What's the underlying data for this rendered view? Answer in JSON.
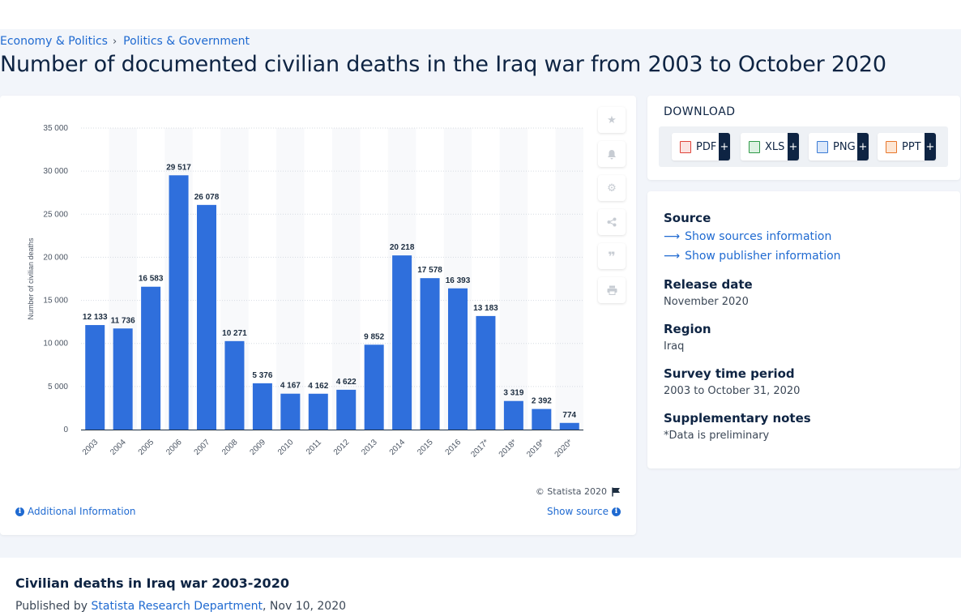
{
  "breadcrumb": {
    "item1": "Economy & Politics",
    "item2": "Politics & Government"
  },
  "title": "Number of documented civilian deaths in the Iraq war from 2003 to October 2020",
  "chart_data": {
    "type": "bar",
    "categories": [
      "2003",
      "2004",
      "2005",
      "2006",
      "2007",
      "2008",
      "2009",
      "2010",
      "2011",
      "2012",
      "2013",
      "2014",
      "2015",
      "2016",
      "2017*",
      "2018*",
      "2019*",
      "2020*"
    ],
    "values": [
      12133,
      11736,
      16583,
      29517,
      26078,
      10271,
      5376,
      4167,
      4162,
      4622,
      9852,
      20218,
      17578,
      16393,
      13183,
      3319,
      2392,
      774
    ],
    "value_labels": [
      "12 133",
      "11 736",
      "16 583",
      "29 517",
      "26 078",
      "10 271",
      "5 376",
      "4 167",
      "4 162",
      "4 622",
      "9 852",
      "20 218",
      "17 578",
      "16 393",
      "13 183",
      "3 319",
      "2 392",
      "774"
    ],
    "ylabel": "Number of civilian deaths",
    "ylim": [
      0,
      35000
    ],
    "yticks": [
      "0",
      "5 000",
      "10 000",
      "15 000",
      "20 000",
      "25 000",
      "30 000",
      "35 000"
    ],
    "bar_color": "#2f6fdc",
    "grid": true
  },
  "chart_footer": {
    "copyright": "© Statista 2020",
    "additional_info": "Additional Information",
    "show_source": "Show source"
  },
  "tools": [
    "star-icon",
    "bell-icon",
    "gear-icon",
    "share-icon",
    "quote-icon",
    "print-icon"
  ],
  "download": {
    "title": "DOWNLOAD",
    "buttons": [
      {
        "label": "PDF",
        "color": "#e0443a"
      },
      {
        "label": "XLS",
        "color": "#2e9a47"
      },
      {
        "label": "PNG",
        "color": "#3a7bd5"
      },
      {
        "label": "PPT",
        "color": "#e8762b"
      }
    ],
    "plus": "+"
  },
  "meta": {
    "source_h": "Source",
    "show_sources": "Show sources information",
    "show_publisher": "Show publisher information",
    "release_h": "Release date",
    "release_v": "November 2020",
    "region_h": "Region",
    "region_v": "Iraq",
    "period_h": "Survey time period",
    "period_v": "2003 to October 31, 2020",
    "notes_h": "Supplementary notes",
    "notes_v": "*Data is preliminary"
  },
  "bottom": {
    "title": "Civilian deaths in Iraq war 2003-2020",
    "published_by": "Published by",
    "publisher": "Statista Research Department",
    "date": ", Nov 10, 2020"
  }
}
